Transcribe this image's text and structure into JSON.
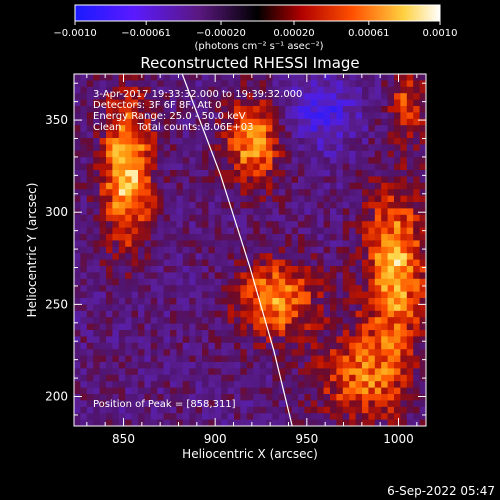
{
  "chart_data": {
    "type": "heatmap",
    "title": "Reconstructed RHESSI Image",
    "xlabel": "Heliocentric X (arcsec)",
    "ylabel": "Heliocentric Y (arcsec)",
    "xlim": [
      823,
      1015
    ],
    "ylim": [
      184,
      375
    ],
    "x_ticks": [
      "850",
      "900",
      "950",
      "1000"
    ],
    "y_ticks": [
      "200",
      "250",
      "300",
      "350"
    ],
    "colorbar": {
      "ticks": [
        "−0.0010",
        "−0.00061",
        "−0.00020",
        "0.00020",
        "0.00061",
        "0.0010"
      ],
      "range": [
        -0.001,
        0.001
      ],
      "unit_label": "(photons cm⁻² s⁻¹ asec⁻²)"
    },
    "annotations": {
      "time_range": "3-Apr-2017 19:33:32.000 to 19:39:32.000",
      "detectors": "Detectors: 3F 6F 8F, Att 0",
      "energy": "Energy Range: 25.0 - 50.0 keV",
      "method": "Clean     Total counts: 8.06E+03",
      "peak": "Position of Peak = [858,311]"
    },
    "limb": {
      "x": [
        882,
        903,
        919,
        932,
        942
      ],
      "y": [
        375,
        320,
        270,
        225,
        184
      ]
    },
    "blobs": [
      {
        "name": "upper-left",
        "x": 852,
        "y": 322,
        "sx": 10,
        "sy": 28,
        "amp": 1.0
      },
      {
        "name": "upper-middle",
        "x": 921,
        "y": 338,
        "sx": 11,
        "sy": 17,
        "amp": 0.85
      },
      {
        "name": "center",
        "x": 933,
        "y": 253,
        "sx": 16,
        "sy": 15,
        "amp": 0.8
      },
      {
        "name": "right",
        "x": 998,
        "y": 270,
        "sx": 12,
        "sy": 32,
        "amp": 0.9
      },
      {
        "name": "lower-right",
        "x": 980,
        "y": 210,
        "sx": 18,
        "sy": 18,
        "amp": 0.65
      },
      {
        "name": "right-upper",
        "x": 1005,
        "y": 360,
        "sx": 7,
        "sy": 14,
        "amp": 0.55
      }
    ],
    "negative_region": {
      "x": 958,
      "y": 355,
      "sx": 14,
      "sy": 14,
      "amp": -0.5
    }
  },
  "footer": {
    "timestamp": "6-Sep-2022 05:47"
  }
}
